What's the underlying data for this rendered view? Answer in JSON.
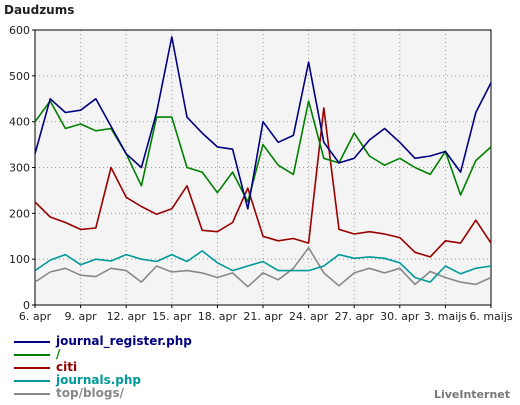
{
  "brand": "LiveInternet",
  "chart_data": {
    "type": "line",
    "title": "Daudzums",
    "xlabel": "",
    "ylabel": "",
    "ylim": [
      0,
      600
    ],
    "yticks": [
      0,
      100,
      200,
      300,
      400,
      500,
      600
    ],
    "grid": true,
    "x": [
      "6. apr",
      "7. apr",
      "8. apr",
      "9. apr",
      "10. apr",
      "11. apr",
      "12. apr",
      "13. apr",
      "14. apr",
      "15. apr",
      "16. apr",
      "17. apr",
      "18. apr",
      "19. apr",
      "20. apr",
      "21. apr",
      "22. apr",
      "23. apr",
      "24. apr",
      "25. apr",
      "26. apr",
      "27. apr",
      "28. apr",
      "29. apr",
      "30. apr",
      "1. maijs",
      "2. maijs",
      "3. maijs",
      "4. maijs",
      "5. maijs",
      "6. maijs"
    ],
    "xtick_labels": [
      "6. apr",
      "9. apr",
      "12. apr",
      "15. apr",
      "18. apr",
      "21. apr",
      "24. apr",
      "27. apr",
      "30. apr",
      "3. maijs",
      "6. maijs"
    ],
    "legend_position": "bottom-left",
    "series": [
      {
        "name": "journal_register.php",
        "color": "#000080",
        "values": [
          330,
          450,
          420,
          425,
          450,
          390,
          330,
          300,
          420,
          585,
          410,
          375,
          345,
          340,
          210,
          400,
          355,
          370,
          530,
          355,
          310,
          320,
          360,
          385,
          355,
          320,
          325,
          335,
          290,
          420,
          485
        ]
      },
      {
        "name": "/",
        "color": "#008000",
        "values": [
          400,
          445,
          385,
          395,
          380,
          385,
          330,
          260,
          410,
          410,
          300,
          290,
          245,
          290,
          225,
          350,
          305,
          285,
          445,
          320,
          310,
          375,
          325,
          305,
          320,
          300,
          285,
          335,
          240,
          315,
          345
        ]
      },
      {
        "name": "citi",
        "color": "#990000",
        "values": [
          225,
          192,
          180,
          165,
          168,
          300,
          235,
          215,
          198,
          210,
          260,
          163,
          160,
          180,
          255,
          150,
          140,
          145,
          135,
          430,
          165,
          155,
          160,
          155,
          147,
          115,
          105,
          140,
          135,
          185,
          135
        ]
      },
      {
        "name": "journals.php",
        "color": "#009999",
        "values": [
          75,
          98,
          110,
          88,
          100,
          96,
          110,
          100,
          95,
          110,
          95,
          118,
          92,
          75,
          85,
          95,
          75,
          75,
          75,
          85,
          110,
          102,
          105,
          102,
          92,
          60,
          50,
          85,
          68,
          80,
          85
        ]
      },
      {
        "name": "top/blogs/",
        "color": "#888888",
        "values": [
          50,
          72,
          80,
          65,
          62,
          80,
          75,
          50,
          85,
          72,
          75,
          70,
          60,
          70,
          40,
          70,
          55,
          80,
          125,
          70,
          42,
          70,
          80,
          70,
          80,
          45,
          73,
          60,
          50,
          45,
          60
        ]
      }
    ]
  }
}
